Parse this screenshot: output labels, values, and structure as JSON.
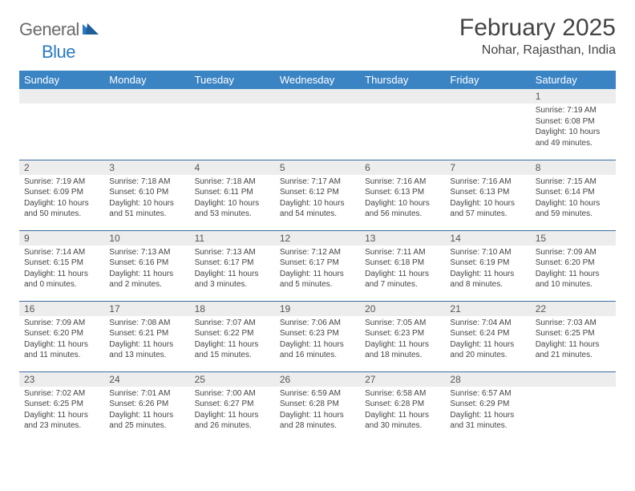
{
  "brand": {
    "name1": "General",
    "name2": "Blue"
  },
  "title": "February 2025",
  "location": "Nohar, Rajasthan, India",
  "colors": {
    "header_bg": "#3b84c4",
    "header_text": "#ffffff",
    "daynum_bg": "#ededed",
    "border": "#3b6fa0",
    "text": "#444444",
    "logo_gray": "#6b6b6b",
    "logo_blue": "#2a7ac0"
  },
  "dayNames": [
    "Sunday",
    "Monday",
    "Tuesday",
    "Wednesday",
    "Thursday",
    "Friday",
    "Saturday"
  ],
  "weeks": [
    [
      null,
      null,
      null,
      null,
      null,
      null,
      {
        "n": "1",
        "sunrise": "7:19 AM",
        "sunset": "6:08 PM",
        "daylight": "10 hours and 49 minutes."
      }
    ],
    [
      {
        "n": "2",
        "sunrise": "7:19 AM",
        "sunset": "6:09 PM",
        "daylight": "10 hours and 50 minutes."
      },
      {
        "n": "3",
        "sunrise": "7:18 AM",
        "sunset": "6:10 PM",
        "daylight": "10 hours and 51 minutes."
      },
      {
        "n": "4",
        "sunrise": "7:18 AM",
        "sunset": "6:11 PM",
        "daylight": "10 hours and 53 minutes."
      },
      {
        "n": "5",
        "sunrise": "7:17 AM",
        "sunset": "6:12 PM",
        "daylight": "10 hours and 54 minutes."
      },
      {
        "n": "6",
        "sunrise": "7:16 AM",
        "sunset": "6:13 PM",
        "daylight": "10 hours and 56 minutes."
      },
      {
        "n": "7",
        "sunrise": "7:16 AM",
        "sunset": "6:13 PM",
        "daylight": "10 hours and 57 minutes."
      },
      {
        "n": "8",
        "sunrise": "7:15 AM",
        "sunset": "6:14 PM",
        "daylight": "10 hours and 59 minutes."
      }
    ],
    [
      {
        "n": "9",
        "sunrise": "7:14 AM",
        "sunset": "6:15 PM",
        "daylight": "11 hours and 0 minutes."
      },
      {
        "n": "10",
        "sunrise": "7:13 AM",
        "sunset": "6:16 PM",
        "daylight": "11 hours and 2 minutes."
      },
      {
        "n": "11",
        "sunrise": "7:13 AM",
        "sunset": "6:17 PM",
        "daylight": "11 hours and 3 minutes."
      },
      {
        "n": "12",
        "sunrise": "7:12 AM",
        "sunset": "6:17 PM",
        "daylight": "11 hours and 5 minutes."
      },
      {
        "n": "13",
        "sunrise": "7:11 AM",
        "sunset": "6:18 PM",
        "daylight": "11 hours and 7 minutes."
      },
      {
        "n": "14",
        "sunrise": "7:10 AM",
        "sunset": "6:19 PM",
        "daylight": "11 hours and 8 minutes."
      },
      {
        "n": "15",
        "sunrise": "7:09 AM",
        "sunset": "6:20 PM",
        "daylight": "11 hours and 10 minutes."
      }
    ],
    [
      {
        "n": "16",
        "sunrise": "7:09 AM",
        "sunset": "6:20 PM",
        "daylight": "11 hours and 11 minutes."
      },
      {
        "n": "17",
        "sunrise": "7:08 AM",
        "sunset": "6:21 PM",
        "daylight": "11 hours and 13 minutes."
      },
      {
        "n": "18",
        "sunrise": "7:07 AM",
        "sunset": "6:22 PM",
        "daylight": "11 hours and 15 minutes."
      },
      {
        "n": "19",
        "sunrise": "7:06 AM",
        "sunset": "6:23 PM",
        "daylight": "11 hours and 16 minutes."
      },
      {
        "n": "20",
        "sunrise": "7:05 AM",
        "sunset": "6:23 PM",
        "daylight": "11 hours and 18 minutes."
      },
      {
        "n": "21",
        "sunrise": "7:04 AM",
        "sunset": "6:24 PM",
        "daylight": "11 hours and 20 minutes."
      },
      {
        "n": "22",
        "sunrise": "7:03 AM",
        "sunset": "6:25 PM",
        "daylight": "11 hours and 21 minutes."
      }
    ],
    [
      {
        "n": "23",
        "sunrise": "7:02 AM",
        "sunset": "6:25 PM",
        "daylight": "11 hours and 23 minutes."
      },
      {
        "n": "24",
        "sunrise": "7:01 AM",
        "sunset": "6:26 PM",
        "daylight": "11 hours and 25 minutes."
      },
      {
        "n": "25",
        "sunrise": "7:00 AM",
        "sunset": "6:27 PM",
        "daylight": "11 hours and 26 minutes."
      },
      {
        "n": "26",
        "sunrise": "6:59 AM",
        "sunset": "6:28 PM",
        "daylight": "11 hours and 28 minutes."
      },
      {
        "n": "27",
        "sunrise": "6:58 AM",
        "sunset": "6:28 PM",
        "daylight": "11 hours and 30 minutes."
      },
      {
        "n": "28",
        "sunrise": "6:57 AM",
        "sunset": "6:29 PM",
        "daylight": "11 hours and 31 minutes."
      },
      null
    ]
  ],
  "labels": {
    "sunrise": "Sunrise:",
    "sunset": "Sunset:",
    "daylight": "Daylight:"
  }
}
